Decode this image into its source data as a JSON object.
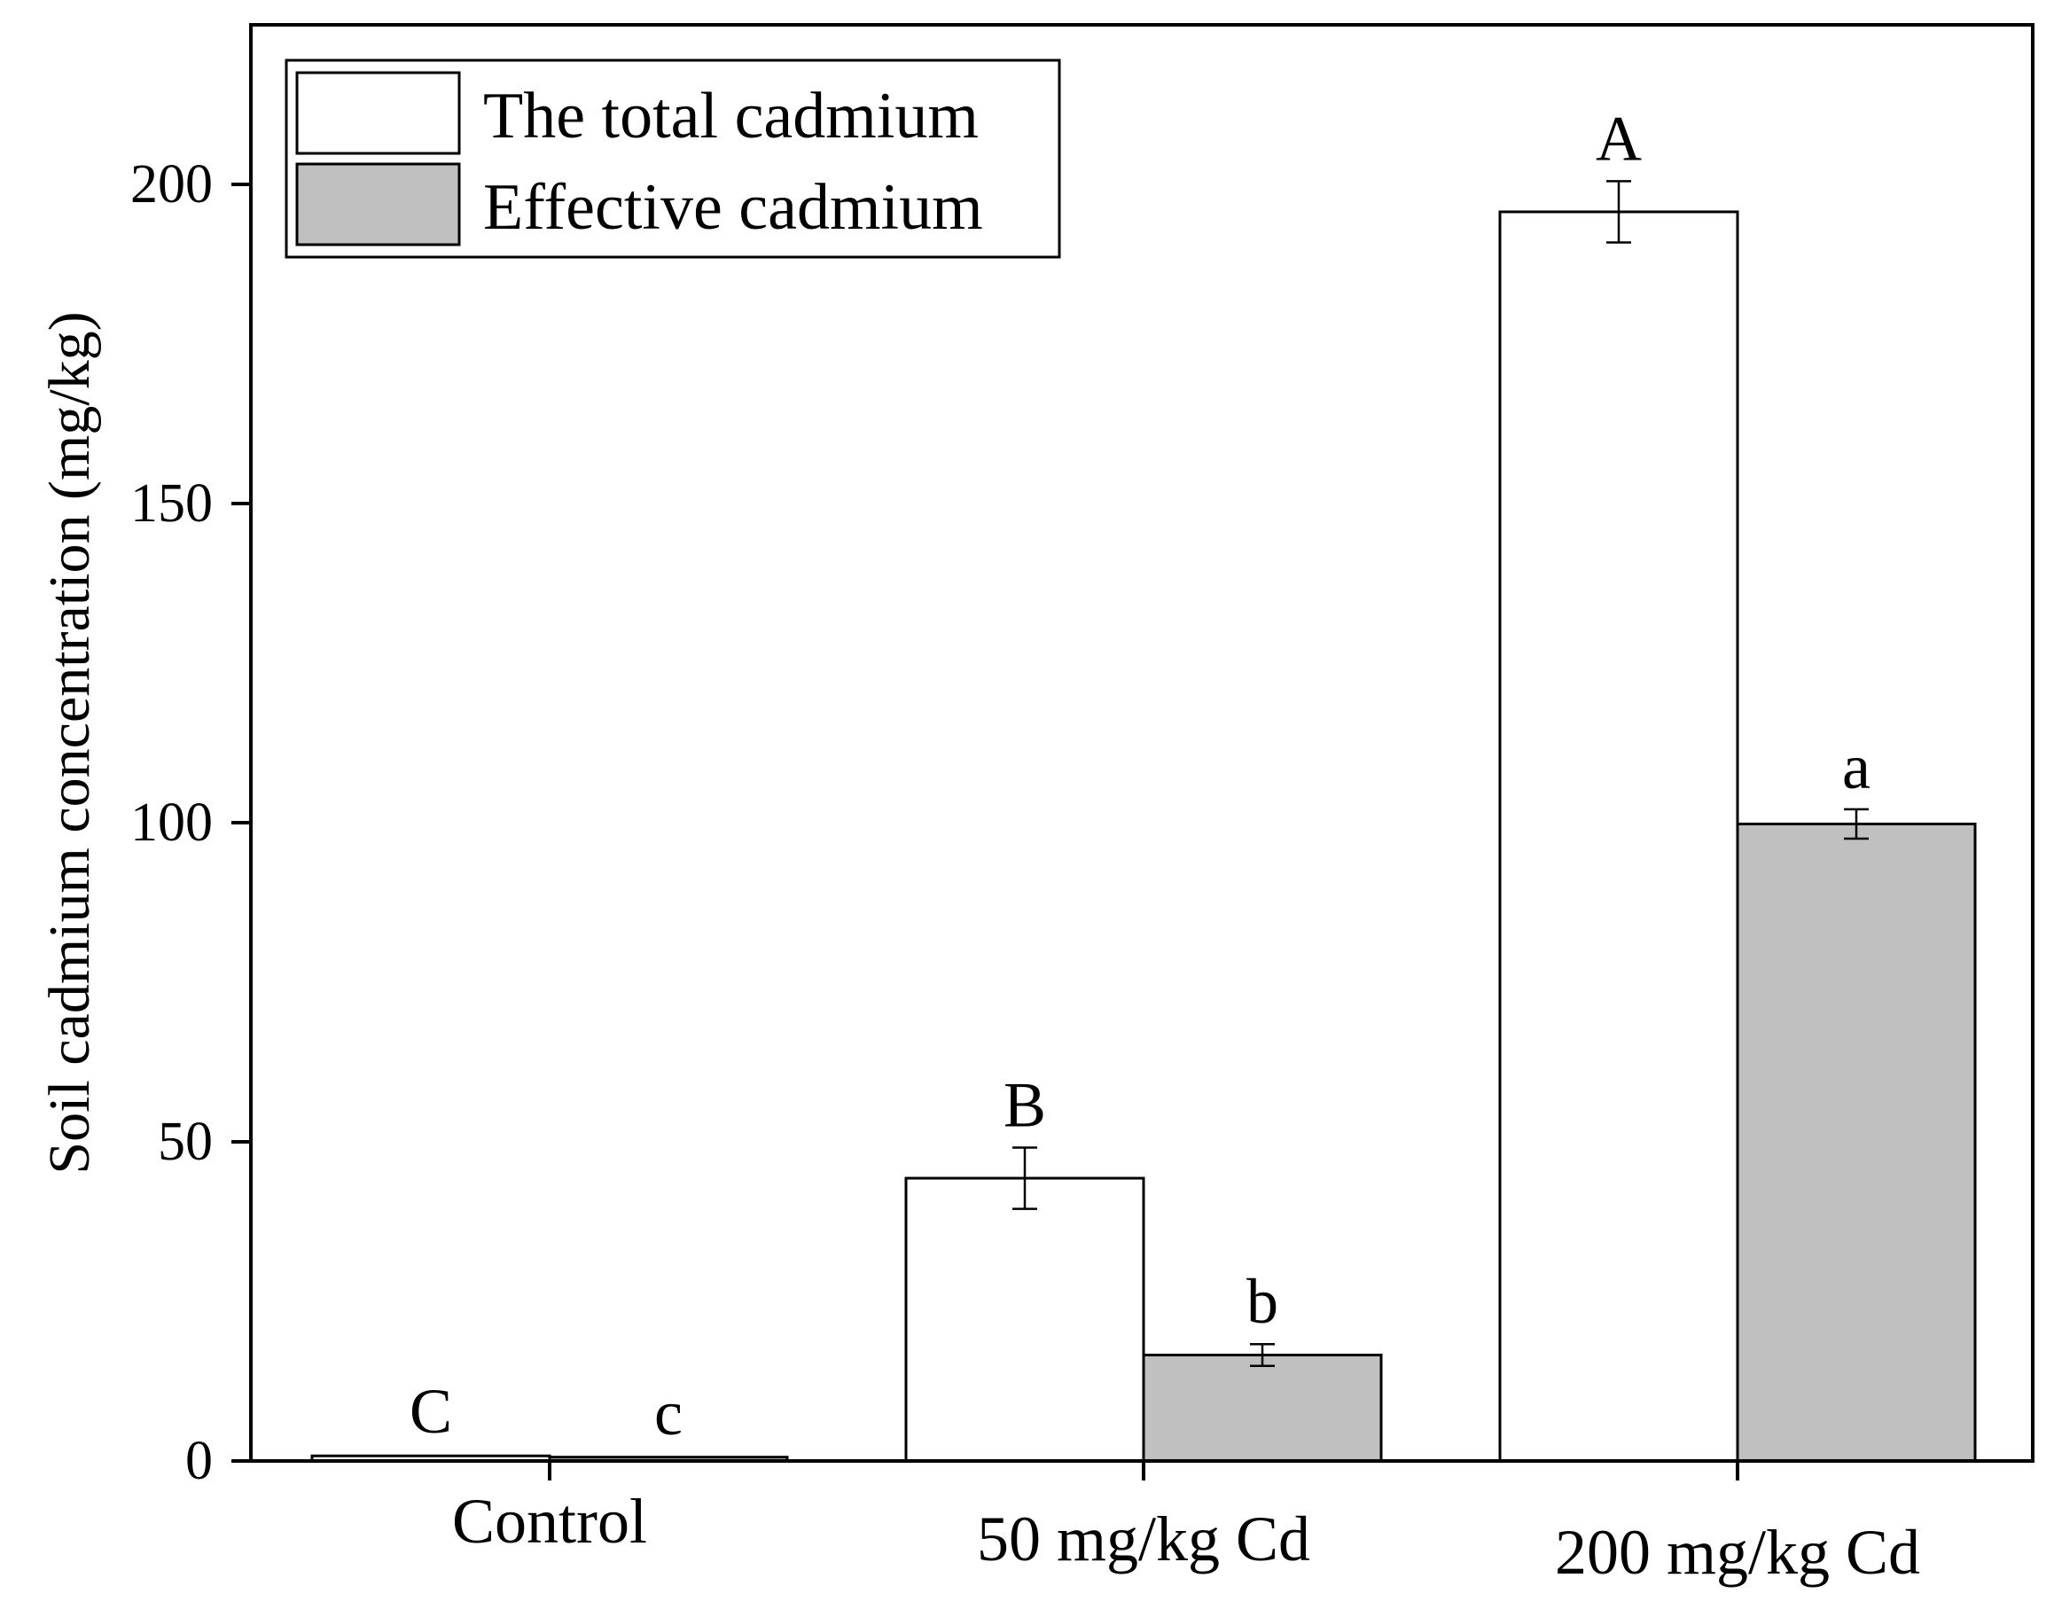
{
  "chart_data": {
    "type": "bar",
    "title": "",
    "xlabel": "",
    "ylabel": "Soil cadmium concentration (mg/kg)",
    "ylim": [
      0,
      225
    ],
    "yticks": [
      0,
      50,
      100,
      150,
      200
    ],
    "grid": false,
    "legend_position": "top-left",
    "categories": [
      "Control",
      "50 mg/kg Cd",
      "200 mg/kg Cd"
    ],
    "series": [
      {
        "name": "The total cadmium",
        "color": "#ffffff",
        "values": [
          0.8,
          44.3,
          195.7
        ],
        "errors": [
          0.3,
          4.8,
          4.8
        ],
        "letters": [
          "C",
          "B",
          "A"
        ]
      },
      {
        "name": "Effective cadmium",
        "color": "#c0c0c0",
        "values": [
          0.6,
          16.6,
          99.8
        ],
        "errors": [
          0.2,
          1.7,
          2.3
        ],
        "letters": [
          "c",
          "b",
          "a"
        ]
      }
    ]
  }
}
